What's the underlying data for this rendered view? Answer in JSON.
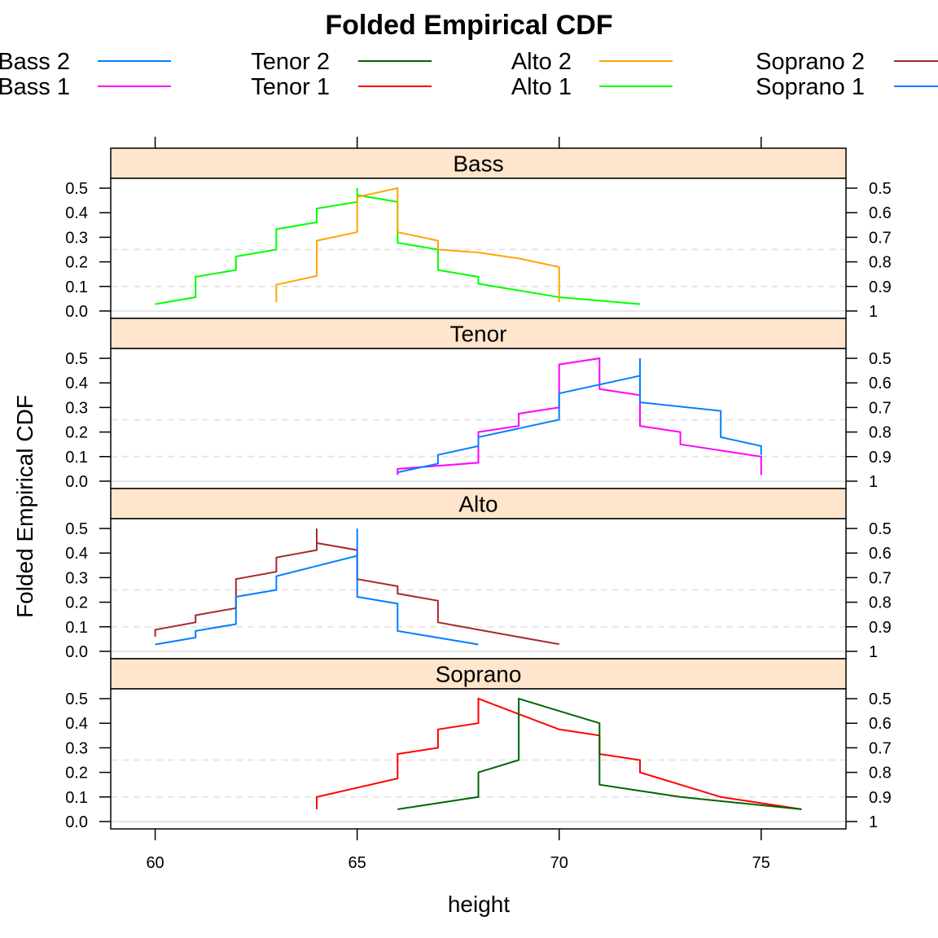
{
  "chart_data": {
    "type": "line",
    "title": "Folded Empirical CDF",
    "xlabel": "height",
    "ylabel": "Folded Empirical CDF",
    "xlim": [
      58.9,
      77.1
    ],
    "ylim": [
      -0.03,
      0.54
    ],
    "x_ticks": [
      60,
      65,
      70,
      75
    ],
    "y_ticks_left": [
      "0.0",
      "0.1",
      "0.2",
      "0.3",
      "0.4",
      "0.5"
    ],
    "y_ticks_right": [
      "1",
      "0.9",
      "0.8",
      "0.7",
      "0.6",
      "0.5"
    ],
    "reference_lines": [
      0.1,
      0.25
    ],
    "legend": [
      {
        "name": "Bass 2",
        "color": "#0080ff"
      },
      {
        "name": "Bass 1",
        "color": "#ff00ff"
      },
      {
        "name": "Tenor 2",
        "color": "#006400"
      },
      {
        "name": "Tenor 1",
        "color": "#ff0000"
      },
      {
        "name": "Alto 2",
        "color": "#ffa500"
      },
      {
        "name": "Alto 1",
        "color": "#00ff00"
      },
      {
        "name": "Soprano 2",
        "color": "#a52a2a"
      },
      {
        "name": "Soprano 1",
        "color": "#0080ff"
      }
    ],
    "panels": [
      {
        "name": "Bass",
        "series": [
          {
            "color": "#00ff00",
            "points": [
              [
                60,
                0.028
              ],
              [
                61,
                0.056
              ],
              [
                61,
                0.139
              ],
              [
                62,
                0.167
              ],
              [
                62,
                0.222
              ],
              [
                63,
                0.25
              ],
              [
                63,
                0.333
              ],
              [
                64,
                0.361
              ],
              [
                64,
                0.417
              ],
              [
                65,
                0.444
              ],
              [
                65,
                0.5
              ],
              [
                65,
                0.472
              ],
              [
                66,
                0.444
              ],
              [
                66,
                0.278
              ],
              [
                67,
                0.25
              ],
              [
                67,
                0.167
              ],
              [
                68,
                0.139
              ],
              [
                68,
                0.111
              ],
              [
                70,
                0.056
              ],
              [
                72,
                0.028
              ]
            ]
          },
          {
            "color": "#ffa500",
            "points": [
              [
                63,
                0.036
              ],
              [
                63,
                0.107
              ],
              [
                64,
                0.143
              ],
              [
                64,
                0.286
              ],
              [
                65,
                0.321
              ],
              [
                65,
                0.464
              ],
              [
                66,
                0.5
              ],
              [
                66,
                0.321
              ],
              [
                67,
                0.286
              ],
              [
                67,
                0.25
              ],
              [
                68,
                0.238
              ],
              [
                69,
                0.214
              ],
              [
                70,
                0.179
              ],
              [
                70,
                0.036
              ]
            ]
          }
        ]
      },
      {
        "name": "Tenor",
        "series": [
          {
            "color": "#ff00ff",
            "points": [
              [
                66,
                0.025
              ],
              [
                66,
                0.05
              ],
              [
                68,
                0.075
              ],
              [
                68,
                0.2
              ],
              [
                69,
                0.225
              ],
              [
                69,
                0.275
              ],
              [
                70,
                0.3
              ],
              [
                70,
                0.475
              ],
              [
                71,
                0.5
              ],
              [
                71,
                0.375
              ],
              [
                72,
                0.35
              ],
              [
                72,
                0.225
              ],
              [
                73,
                0.2
              ],
              [
                73,
                0.15
              ],
              [
                75,
                0.1
              ],
              [
                75,
                0.025
              ]
            ]
          },
          {
            "color": "#0080ff",
            "points": [
              [
                66,
                0.036
              ],
              [
                67,
                0.071
              ],
              [
                67,
                0.107
              ],
              [
                68,
                0.143
              ],
              [
                68,
                0.179
              ],
              [
                70,
                0.25
              ],
              [
                70,
                0.357
              ],
              [
                72,
                0.429
              ],
              [
                72,
                0.5
              ],
              [
                72,
                0.321
              ],
              [
                74,
                0.286
              ],
              [
                74,
                0.179
              ],
              [
                75,
                0.143
              ],
              [
                75,
                0.107
              ]
            ]
          }
        ]
      },
      {
        "name": "Alto",
        "series": [
          {
            "color": "#a52a2a",
            "points": [
              [
                60,
                0.059
              ],
              [
                60,
                0.088
              ],
              [
                61,
                0.118
              ],
              [
                61,
                0.147
              ],
              [
                62,
                0.176
              ],
              [
                62,
                0.294
              ],
              [
                63,
                0.324
              ],
              [
                63,
                0.382
              ],
              [
                64,
                0.412
              ],
              [
                64,
                0.5
              ],
              [
                64,
                0.441
              ],
              [
                65,
                0.412
              ],
              [
                65,
                0.294
              ],
              [
                66,
                0.265
              ],
              [
                66,
                0.235
              ],
              [
                67,
                0.206
              ],
              [
                67,
                0.118
              ],
              [
                68,
                0.088
              ],
              [
                70,
                0.029
              ]
            ]
          },
          {
            "color": "#0080ff",
            "points": [
              [
                60,
                0.028
              ],
              [
                61,
                0.056
              ],
              [
                61,
                0.083
              ],
              [
                62,
                0.111
              ],
              [
                62,
                0.222
              ],
              [
                63,
                0.25
              ],
              [
                63,
                0.306
              ],
              [
                65,
                0.389
              ],
              [
                65,
                0.5
              ],
              [
                65,
                0.222
              ],
              [
                66,
                0.194
              ],
              [
                66,
                0.083
              ],
              [
                68,
                0.028
              ]
            ]
          }
        ]
      },
      {
        "name": "Soprano",
        "series": [
          {
            "color": "#ff0000",
            "points": [
              [
                64,
                0.05
              ],
              [
                64,
                0.1
              ],
              [
                66,
                0.175
              ],
              [
                66,
                0.275
              ],
              [
                67,
                0.3
              ],
              [
                67,
                0.375
              ],
              [
                68,
                0.4
              ],
              [
                68,
                0.5
              ],
              [
                70,
                0.375
              ],
              [
                71,
                0.35
              ],
              [
                71,
                0.275
              ],
              [
                72,
                0.25
              ],
              [
                72,
                0.2
              ],
              [
                74,
                0.1
              ],
              [
                76,
                0.05
              ]
            ]
          },
          {
            "color": "#006400",
            "points": [
              [
                66,
                0.05
              ],
              [
                68,
                0.1
              ],
              [
                68,
                0.2
              ],
              [
                69,
                0.25
              ],
              [
                69,
                0.5
              ],
              [
                70,
                0.45
              ],
              [
                71,
                0.4
              ],
              [
                71,
                0.15
              ],
              [
                73,
                0.1
              ],
              [
                76,
                0.05
              ]
            ]
          }
        ]
      }
    ]
  }
}
